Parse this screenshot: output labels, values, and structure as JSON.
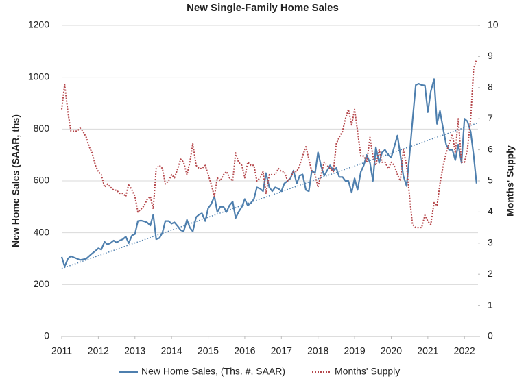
{
  "chart_data": {
    "type": "line",
    "title": "New Single-Family Home Sales",
    "y_label": "New Home Sales (SAAR, ths)",
    "y2_label": "Months' Supply",
    "x": [
      2011,
      2011.08,
      2011.17,
      2011.25,
      2011.33,
      2011.42,
      2011.5,
      2011.58,
      2011.67,
      2011.75,
      2011.83,
      2011.92,
      2012,
      2012.08,
      2012.17,
      2012.25,
      2012.33,
      2012.42,
      2012.5,
      2012.58,
      2012.67,
      2012.75,
      2012.83,
      2012.92,
      2013,
      2013.08,
      2013.17,
      2013.25,
      2013.33,
      2013.42,
      2013.5,
      2013.58,
      2013.67,
      2013.75,
      2013.83,
      2013.92,
      2014,
      2014.08,
      2014.17,
      2014.25,
      2014.33,
      2014.42,
      2014.5,
      2014.58,
      2014.67,
      2014.75,
      2014.83,
      2014.92,
      2015,
      2015.08,
      2015.17,
      2015.25,
      2015.33,
      2015.42,
      2015.5,
      2015.58,
      2015.67,
      2015.75,
      2015.83,
      2015.92,
      2016,
      2016.08,
      2016.17,
      2016.25,
      2016.33,
      2016.42,
      2016.5,
      2016.58,
      2016.67,
      2016.75,
      2016.83,
      2016.92,
      2017,
      2017.08,
      2017.17,
      2017.25,
      2017.33,
      2017.42,
      2017.5,
      2017.58,
      2017.67,
      2017.75,
      2017.83,
      2017.92,
      2018,
      2018.08,
      2018.17,
      2018.25,
      2018.33,
      2018.42,
      2018.5,
      2018.58,
      2018.67,
      2018.75,
      2018.83,
      2018.92,
      2019,
      2019.08,
      2019.17,
      2019.25,
      2019.33,
      2019.42,
      2019.5,
      2019.58,
      2019.67,
      2019.75,
      2019.83,
      2019.92,
      2020,
      2020.08,
      2020.17,
      2020.25,
      2020.33,
      2020.42,
      2020.5,
      2020.58,
      2020.67,
      2020.75,
      2020.83,
      2020.92,
      2021,
      2021.08,
      2021.17,
      2021.25,
      2021.33,
      2021.42,
      2021.5,
      2021.58,
      2021.67,
      2021.75,
      2021.83,
      2021.92,
      2022,
      2022.08,
      2022.17,
      2022.25,
      2022.33
    ],
    "series": [
      {
        "name": "New Home Sales, (Ths. #, SAAR)",
        "color": "#4e7fae",
        "dash": "solid",
        "values": [
          307,
          270,
          300,
          310,
          305,
          300,
          295,
          297,
          300,
          310,
          320,
          330,
          340,
          335,
          365,
          355,
          360,
          370,
          362,
          370,
          375,
          385,
          360,
          390,
          395,
          445,
          447,
          444,
          440,
          428,
          470,
          375,
          380,
          400,
          445,
          445,
          435,
          440,
          425,
          410,
          405,
          450,
          420,
          405,
          460,
          470,
          475,
          445,
          495,
          510,
          540,
          480,
          500,
          500,
          480,
          505,
          520,
          457,
          480,
          500,
          530,
          505,
          515,
          530,
          575,
          570,
          560,
          630,
          575,
          560,
          575,
          570,
          560,
          590,
          600,
          610,
          640,
          590,
          620,
          625,
          565,
          560,
          640,
          630,
          710,
          660,
          620,
          640,
          660,
          640,
          650,
          615,
          615,
          600,
          600,
          555,
          610,
          565,
          635,
          660,
          700,
          670,
          600,
          730,
          670,
          710,
          720,
          700,
          690,
          730,
          775,
          700,
          620,
          580,
          700,
          830,
          970,
          975,
          970,
          968,
          865,
          945,
          993,
          820,
          870,
          800,
          740,
          720,
          720,
          680,
          740,
          670,
          840,
          830,
          790,
          700,
          590
        ]
      },
      {
        "name": "Months' Supply",
        "color": "#b5474b",
        "dash": "dotted",
        "axis": "y2",
        "values": [
          7.3,
          8.1,
          7.2,
          6.6,
          6.6,
          6.6,
          6.7,
          6.6,
          6.4,
          6.1,
          5.9,
          5.5,
          5.3,
          5.2,
          4.8,
          4.9,
          4.8,
          4.7,
          4.7,
          4.6,
          4.6,
          4.5,
          4.9,
          4.7,
          4.5,
          4.0,
          4.1,
          4.2,
          4.4,
          4.5,
          4.1,
          5.4,
          5.5,
          5.4,
          4.9,
          5.0,
          5.2,
          5.1,
          5.4,
          5.7,
          5.6,
          5.2,
          5.6,
          6.2,
          5.5,
          5.4,
          5.4,
          5.5,
          5.2,
          4.9,
          4.5,
          5.1,
          5.0,
          5.2,
          5.3,
          5.1,
          5.0,
          5.9,
          5.6,
          5.5,
          5.1,
          5.6,
          5.5,
          5.5,
          5.0,
          5.1,
          5.3,
          4.6,
          5.2,
          5.2,
          5.2,
          5.4,
          5.3,
          5.3,
          5.0,
          5.1,
          5.3,
          5.3,
          5.5,
          5.8,
          6.1,
          5.7,
          5.3,
          5.2,
          4.8,
          5.2,
          5.6,
          5.5,
          5.4,
          5.3,
          6.2,
          6.4,
          6.6,
          7.0,
          7.3,
          6.8,
          7.3,
          6.6,
          5.8,
          5.8,
          5.6,
          6.4,
          5.8,
          5.5,
          6.0,
          5.6,
          5.6,
          5.4,
          5.6,
          5.5,
          5.2,
          5.0,
          6.0,
          5.5,
          4.5,
          3.6,
          3.5,
          3.5,
          3.5,
          3.9,
          3.7,
          3.6,
          4.3,
          4.2,
          4.9,
          5.5,
          5.9,
          6.2,
          6.5,
          5.9,
          7.0,
          5.6,
          5.6,
          6.0,
          7.0,
          8.6,
          8.9
        ]
      }
    ],
    "trendline": {
      "x": [
        2011,
        2022.33
      ],
      "values": [
        262,
        822
      ],
      "color": "#4e7fae"
    },
    "xlim": [
      2011,
      2022.37
    ],
    "xticks": [
      2011,
      2012,
      2013,
      2014,
      2015,
      2016,
      2017,
      2018,
      2019,
      2020,
      2021,
      2022
    ],
    "ylim": [
      0,
      1200
    ],
    "yticks": [
      0,
      200,
      400,
      600,
      800,
      1000,
      1200
    ],
    "y2lim": [
      0,
      10
    ],
    "y2ticks": [
      0,
      1,
      2,
      3,
      4,
      5,
      6,
      7,
      8,
      9,
      10
    ],
    "grid": true,
    "legend": "bottom"
  }
}
